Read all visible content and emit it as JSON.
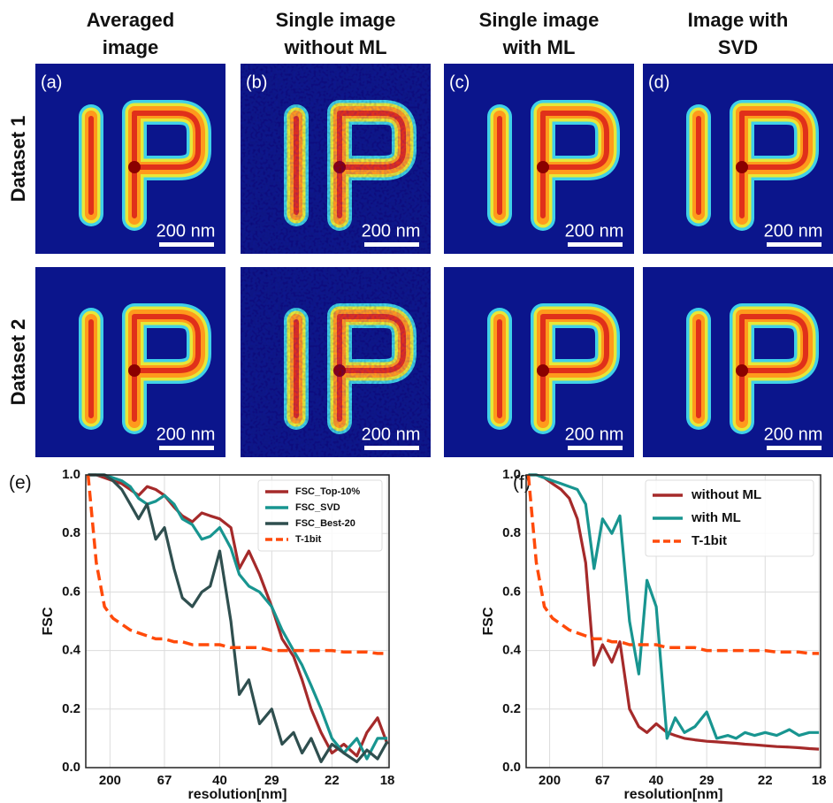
{
  "columns": [
    [
      "Averaged",
      "image"
    ],
    [
      "Single image",
      "without ML"
    ],
    [
      "Single image",
      "with ML"
    ],
    [
      "Image with",
      "SVD"
    ]
  ],
  "rows": [
    "Dataset 1",
    "Dataset 2"
  ],
  "panel_labels": [
    "(a)",
    "(b)",
    "(c)",
    "(d)"
  ],
  "scale_bar": "200 nm",
  "chart_data": [
    {
      "type": "line",
      "label": "(e)",
      "xlabel": "resolution[nm]",
      "ylabel": "FSC",
      "xscale": "reciprocal",
      "xlim": [
        1700,
        17.9
      ],
      "ylim": [
        0,
        1
      ],
      "xticks": [
        200,
        67,
        40,
        29,
        22,
        18
      ],
      "yticks": [
        {
          "value": 0,
          "label": "0.0"
        },
        0.2,
        0.4,
        0.6,
        0.8,
        {
          "value": 1,
          "label": "1.0"
        }
      ],
      "grid": true,
      "legend": "upper right",
      "x": [
        1000,
        400,
        250,
        180,
        140,
        115,
        98,
        85,
        75,
        67,
        60,
        55,
        50,
        46,
        43,
        40,
        37,
        35,
        33,
        31,
        29,
        27.5,
        26,
        25,
        24,
        23,
        22,
        21,
        20,
        19.3,
        18.6,
        18
      ],
      "series": [
        {
          "name": "FSC_Top-10%",
          "color": "#a52a2a",
          "values": [
            1.0,
            1.0,
            0.99,
            0.98,
            0.97,
            0.95,
            0.93,
            0.96,
            0.95,
            0.93,
            0.89,
            0.86,
            0.84,
            0.87,
            0.86,
            0.85,
            0.82,
            0.68,
            0.74,
            0.66,
            0.55,
            0.44,
            0.38,
            0.3,
            0.2,
            0.12,
            0.05,
            0.08,
            0.04,
            0.12,
            0.17,
            0.08
          ]
        },
        {
          "name": "FSC_SVD",
          "color": "#189590",
          "values": [
            1,
            1,
            1,
            0.99,
            0.98,
            0.96,
            0.92,
            0.9,
            0.91,
            0.93,
            0.9,
            0.85,
            0.83,
            0.78,
            0.79,
            0.82,
            0.75,
            0.66,
            0.62,
            0.6,
            0.55,
            0.47,
            0.4,
            0.35,
            0.28,
            0.2,
            0.1,
            0.05,
            0.1,
            0.03,
            0.1,
            0.1
          ]
        },
        {
          "name": "FSC_Best-20",
          "color": "#2f4f4f",
          "values": [
            1,
            1,
            1,
            0.98,
            0.95,
            0.9,
            0.85,
            0.9,
            0.78,
            0.82,
            0.68,
            0.58,
            0.55,
            0.6,
            0.62,
            0.74,
            0.5,
            0.25,
            0.3,
            0.15,
            0.2,
            0.08,
            0.12,
            0.05,
            0.1,
            0.02,
            0.08,
            0.05,
            0.02,
            0.06,
            0.03,
            0.09
          ]
        },
        {
          "name": "T-1bit",
          "color": "#ff4a0a",
          "dash": true,
          "values": [
            1.0,
            0.7,
            0.55,
            0.51,
            0.49,
            0.47,
            0.46,
            0.45,
            0.44,
            0.44,
            0.43,
            0.43,
            0.42,
            0.42,
            0.42,
            0.42,
            0.41,
            0.41,
            0.41,
            0.41,
            0.4,
            0.4,
            0.4,
            0.4,
            0.4,
            0.4,
            0.4,
            0.395,
            0.395,
            0.395,
            0.39,
            0.39
          ]
        }
      ]
    },
    {
      "type": "line",
      "label": "(f)",
      "xlabel": "resolution[nm]",
      "ylabel": "FSC",
      "xscale": "reciprocal",
      "xlim": [
        1700,
        17.9
      ],
      "ylim": [
        0,
        1
      ],
      "xticks": [
        200,
        67,
        40,
        29,
        22,
        18
      ],
      "yticks": [
        {
          "value": 0,
          "label": "0.0"
        },
        0.2,
        0.4,
        0.6,
        0.8,
        {
          "value": 1,
          "label": "1.0"
        }
      ],
      "grid": true,
      "legend": "upper right",
      "x": [
        1000,
        400,
        250,
        180,
        140,
        115,
        98,
        85,
        75,
        67,
        60,
        55,
        50,
        46,
        43,
        40,
        37,
        35,
        33,
        31,
        29,
        27.5,
        26,
        25,
        24,
        23,
        22,
        21,
        20,
        19.3,
        18.6,
        18
      ],
      "series": [
        {
          "name": "without ML",
          "color": "#a52a2a",
          "values": [
            1,
            1,
            0.99,
            0.97,
            0.95,
            0.92,
            0.85,
            0.7,
            0.35,
            0.42,
            0.36,
            0.43,
            0.2,
            0.14,
            0.12,
            0.15,
            0.12,
            0.11,
            0.1,
            0.095,
            0.09,
            0.088,
            0.085,
            0.083,
            0.08,
            0.078,
            0.075,
            0.072,
            0.07,
            0.068,
            0.065,
            0.063
          ]
        },
        {
          "name": "with ML",
          "color": "#189590",
          "values": [
            1,
            1,
            0.99,
            0.98,
            0.97,
            0.96,
            0.95,
            0.9,
            0.68,
            0.85,
            0.8,
            0.86,
            0.5,
            0.32,
            0.64,
            0.55,
            0.1,
            0.17,
            0.12,
            0.14,
            0.19,
            0.1,
            0.11,
            0.1,
            0.12,
            0.11,
            0.12,
            0.11,
            0.13,
            0.11,
            0.12,
            0.12
          ]
        },
        {
          "name": "T-1bit",
          "color": "#ff4a0a",
          "dash": true,
          "values": [
            1.0,
            0.7,
            0.55,
            0.51,
            0.49,
            0.47,
            0.46,
            0.45,
            0.44,
            0.44,
            0.43,
            0.43,
            0.42,
            0.42,
            0.42,
            0.42,
            0.41,
            0.41,
            0.41,
            0.41,
            0.4,
            0.4,
            0.4,
            0.4,
            0.4,
            0.4,
            0.4,
            0.395,
            0.395,
            0.395,
            0.39,
            0.39
          ]
        }
      ]
    }
  ]
}
